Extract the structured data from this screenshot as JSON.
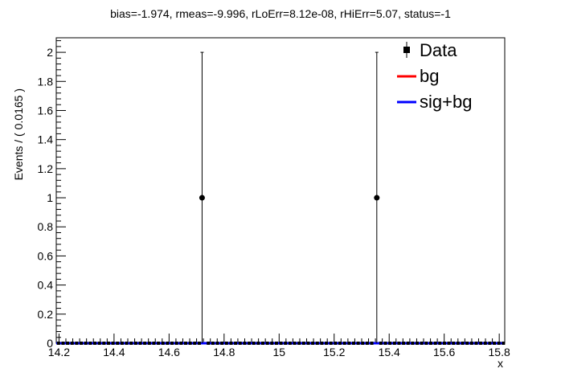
{
  "chart_data": {
    "type": "scatter",
    "title": "bias=-1.974, rmeas=-9.996, rLoErr=8.12e-08, rHiErr=5.07, status=-1",
    "xlabel": "x",
    "ylabel": "Events / ( 0.0165 )",
    "xlim": [
      14.19,
      15.82
    ],
    "ylim": [
      0,
      2.1
    ],
    "x_ticks": [
      {
        "v": 14.2,
        "label": "14.2"
      },
      {
        "v": 14.4,
        "label": "14.4"
      },
      {
        "v": 14.6,
        "label": "14.6"
      },
      {
        "v": 14.8,
        "label": "14.8"
      },
      {
        "v": 15.0,
        "label": "15"
      },
      {
        "v": 15.2,
        "label": "15.2"
      },
      {
        "v": 15.4,
        "label": "15.4"
      },
      {
        "v": 15.6,
        "label": "15.6"
      },
      {
        "v": 15.8,
        "label": "15.8"
      }
    ],
    "y_ticks": [
      {
        "v": 0,
        "label": "0"
      },
      {
        "v": 0.2,
        "label": "0.2"
      },
      {
        "v": 0.4,
        "label": "0.4"
      },
      {
        "v": 0.6,
        "label": "0.6"
      },
      {
        "v": 0.8,
        "label": "0.8"
      },
      {
        "v": 1.0,
        "label": "1"
      },
      {
        "v": 1.2,
        "label": "1.2"
      },
      {
        "v": 1.4,
        "label": "1.4"
      },
      {
        "v": 1.6,
        "label": "1.6"
      },
      {
        "v": 1.8,
        "label": "1.8"
      },
      {
        "v": 2.0,
        "label": "2"
      }
    ],
    "bin_width": 0.0165,
    "data_points": [
      {
        "x": 14.72,
        "y": 1,
        "err_low": 1,
        "err_high": 1
      },
      {
        "x": 15.355,
        "y": 1,
        "err_low": 1,
        "err_high": 1
      }
    ],
    "empty_bin_value": 0,
    "series": [
      {
        "name": "Data",
        "color": "#000000",
        "marker": "square"
      },
      {
        "name": "bg",
        "color": "#ff0000",
        "curve_y": 0.0
      },
      {
        "name": "sig+bg",
        "color": "#0000ff",
        "curve_y": 0.0
      }
    ],
    "legend": {
      "position": "top-right"
    },
    "grid": false
  },
  "colors": {
    "data": "#000000",
    "bg": "#ff0000",
    "sigbg": "#0000ff",
    "axis": "#000000"
  }
}
